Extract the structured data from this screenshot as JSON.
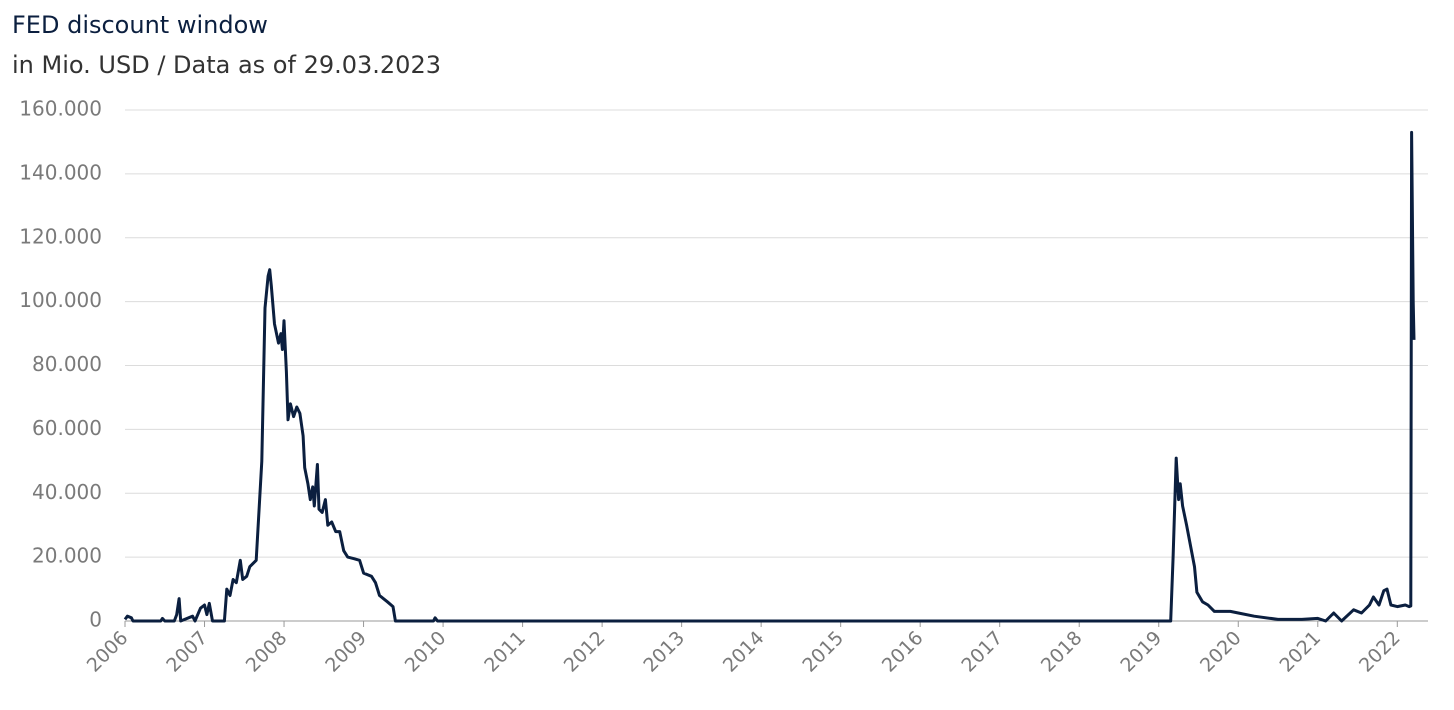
{
  "chart_data": {
    "type": "line",
    "title": "FED discount window",
    "subtitle": "in Mio. USD / Data as of 29.03.2023",
    "x": [
      2006.0,
      2006.03,
      2006.08,
      2006.1,
      2006.45,
      2006.47,
      2006.5,
      2006.62,
      2006.65,
      2006.68,
      2006.7,
      2006.85,
      2006.88,
      2006.95,
      2007.0,
      2007.03,
      2007.06,
      2007.1,
      2007.25,
      2007.28,
      2007.32,
      2007.36,
      2007.4,
      2007.45,
      2007.48,
      2007.53,
      2007.57,
      2007.65,
      2007.72,
      2007.76,
      2007.8,
      2007.82,
      2007.84,
      2007.88,
      2007.93,
      2007.96,
      2007.98,
      2008.0,
      2008.03,
      2008.05,
      2008.08,
      2008.12,
      2008.16,
      2008.2,
      2008.24,
      2008.26,
      2008.3,
      2008.33,
      2008.36,
      2008.38,
      2008.42,
      2008.44,
      2008.48,
      2008.52,
      2008.55,
      2008.6,
      2008.65,
      2008.7,
      2008.75,
      2008.8,
      2008.88,
      2008.95,
      2009.0,
      2009.1,
      2009.15,
      2009.2,
      2009.3,
      2009.37,
      2009.4,
      2009.88,
      2009.9,
      2009.93,
      2019.15,
      2019.18,
      2019.22,
      2019.25,
      2019.27,
      2019.3,
      2019.35,
      2019.45,
      2019.48,
      2019.55,
      2019.62,
      2019.7,
      2019.9,
      2020.0,
      2020.2,
      2020.5,
      2020.8,
      2021.0,
      2021.1,
      2021.2,
      2021.3,
      2021.45,
      2021.55,
      2021.65,
      2021.7,
      2021.77,
      2021.83,
      2021.87,
      2021.92,
      2022.0,
      2022.1,
      2022.15,
      2022.17,
      2022.18,
      2022.2,
      2022.21
    ],
    "series": [
      {
        "name": "FED discount window",
        "color": "#0b1f3f",
        "values": [
          500,
          1500,
          1000,
          0,
          0,
          800,
          0,
          0,
          2000,
          7000,
          0,
          1500,
          0,
          4000,
          5000,
          2000,
          5500,
          0,
          0,
          10000,
          8000,
          13000,
          12000,
          19000,
          13000,
          14000,
          17000,
          19000,
          50000,
          98000,
          108000,
          110000,
          105000,
          93000,
          87000,
          90000,
          85000,
          94000,
          78000,
          63000,
          68000,
          64000,
          67000,
          65000,
          58000,
          48000,
          43000,
          38000,
          42000,
          36000,
          49000,
          35000,
          34000,
          38000,
          30000,
          31000,
          28000,
          28000,
          22000,
          20000,
          19500,
          19000,
          15000,
          14000,
          12000,
          8000,
          6000,
          4500,
          0,
          0,
          1000,
          0,
          0,
          20000,
          51000,
          38000,
          43000,
          36000,
          30000,
          17000,
          9000,
          6000,
          5000,
          3000,
          3000,
          2500,
          1500,
          500,
          500,
          800,
          0,
          2500,
          0,
          3500,
          2500,
          5000,
          7500,
          5000,
          9500,
          10000,
          5000,
          4500,
          5000,
          4500,
          4700,
          153000,
          100000,
          88000
        ]
      }
    ],
    "xlim": [
      2006,
      2022.21
    ],
    "xticks": [
      2006,
      2007,
      2008,
      2009,
      2010,
      2011,
      2012,
      2013,
      2014,
      2015,
      2016,
      2017,
      2018,
      2019,
      2020,
      2021,
      2022
    ],
    "ylim": [
      0,
      160000
    ],
    "yticks": [
      0,
      {
        "value": 20000,
        "label": "20.000"
      },
      {
        "value": 40000,
        "label": "40.000"
      },
      {
        "value": 60000,
        "label": "60.000"
      },
      {
        "value": 80000,
        "label": "80.000"
      },
      {
        "value": 100000,
        "label": "100.000"
      },
      {
        "value": 120000,
        "label": "120.000"
      },
      {
        "value": 140000,
        "label": "140.000"
      },
      {
        "value": 160000,
        "label": "160.000"
      }
    ],
    "grid": true
  }
}
